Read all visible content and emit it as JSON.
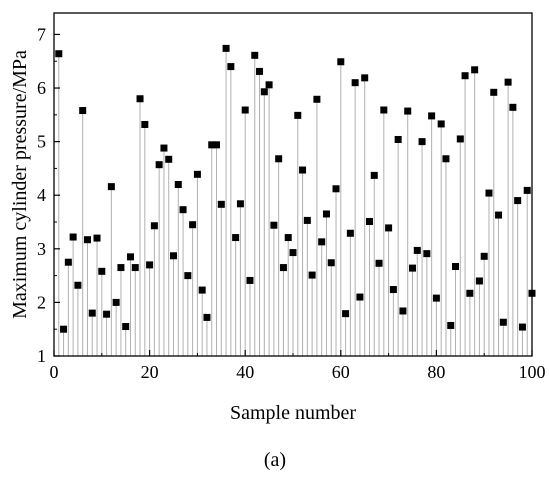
{
  "chart_data": {
    "type": "scatter",
    "style": "drop-lines from baseline with square markers",
    "xlabel": "Sample number",
    "ylabel": "Maximum cylinder pressure/MPa",
    "xlim": [
      0,
      100
    ],
    "ylim": [
      1,
      7.4
    ],
    "x_ticks": [
      0,
      20,
      40,
      60,
      80,
      100
    ],
    "y_ticks": [
      1,
      2,
      3,
      4,
      5,
      6,
      7
    ],
    "grid": false,
    "legend": "none",
    "marker": "square",
    "marker_color": "#000000",
    "dropline_color": "#b0b0b0",
    "x": [
      1,
      2,
      3,
      4,
      5,
      6,
      7,
      8,
      9,
      10,
      11,
      12,
      13,
      14,
      15,
      16,
      17,
      18,
      19,
      20,
      21,
      22,
      23,
      24,
      25,
      26,
      27,
      28,
      29,
      30,
      31,
      32,
      33,
      34,
      35,
      36,
      37,
      38,
      39,
      40,
      41,
      42,
      43,
      44,
      45,
      46,
      47,
      48,
      49,
      50,
      51,
      52,
      53,
      54,
      55,
      56,
      57,
      58,
      59,
      60,
      61,
      62,
      63,
      64,
      65,
      66,
      67,
      68,
      69,
      70,
      71,
      72,
      73,
      74,
      75,
      76,
      77,
      78,
      79,
      80,
      81,
      82,
      83,
      84,
      85,
      86,
      87,
      88,
      89,
      90,
      91,
      92,
      93,
      94,
      95,
      96,
      97,
      98,
      99,
      100
    ],
    "y": [
      6.64,
      1.5,
      2.75,
      3.22,
      2.32,
      5.58,
      3.17,
      1.8,
      3.2,
      2.58,
      1.78,
      4.16,
      2.0,
      2.65,
      1.55,
      2.85,
      2.65,
      5.8,
      5.32,
      2.7,
      3.43,
      4.57,
      4.88,
      4.67,
      2.87,
      4.2,
      3.73,
      2.5,
      3.45,
      4.39,
      2.23,
      1.72,
      4.94,
      4.94,
      3.83,
      6.74,
      6.4,
      3.21,
      3.84,
      5.59,
      2.41,
      6.61,
      6.31,
      5.93,
      6.06,
      3.44,
      4.68,
      2.65,
      3.21,
      2.93,
      5.49,
      4.47,
      3.53,
      2.51,
      5.79,
      3.13,
      3.65,
      2.74,
      4.12,
      6.49,
      1.79,
      3.29,
      6.1,
      2.1,
      6.19,
      3.51,
      4.37,
      2.73,
      5.59,
      3.39,
      2.24,
      5.04,
      1.84,
      5.57,
      2.64,
      2.97,
      5.0,
      2.91,
      5.48,
      2.08,
      5.33,
      4.68,
      1.57,
      2.67,
      5.05,
      6.23,
      2.17,
      6.34,
      2.4,
      2.86,
      4.04,
      5.92,
      3.63,
      1.63,
      6.11,
      5.64,
      3.9,
      1.54,
      4.09,
      2.17
    ]
  },
  "caption": "(a)"
}
